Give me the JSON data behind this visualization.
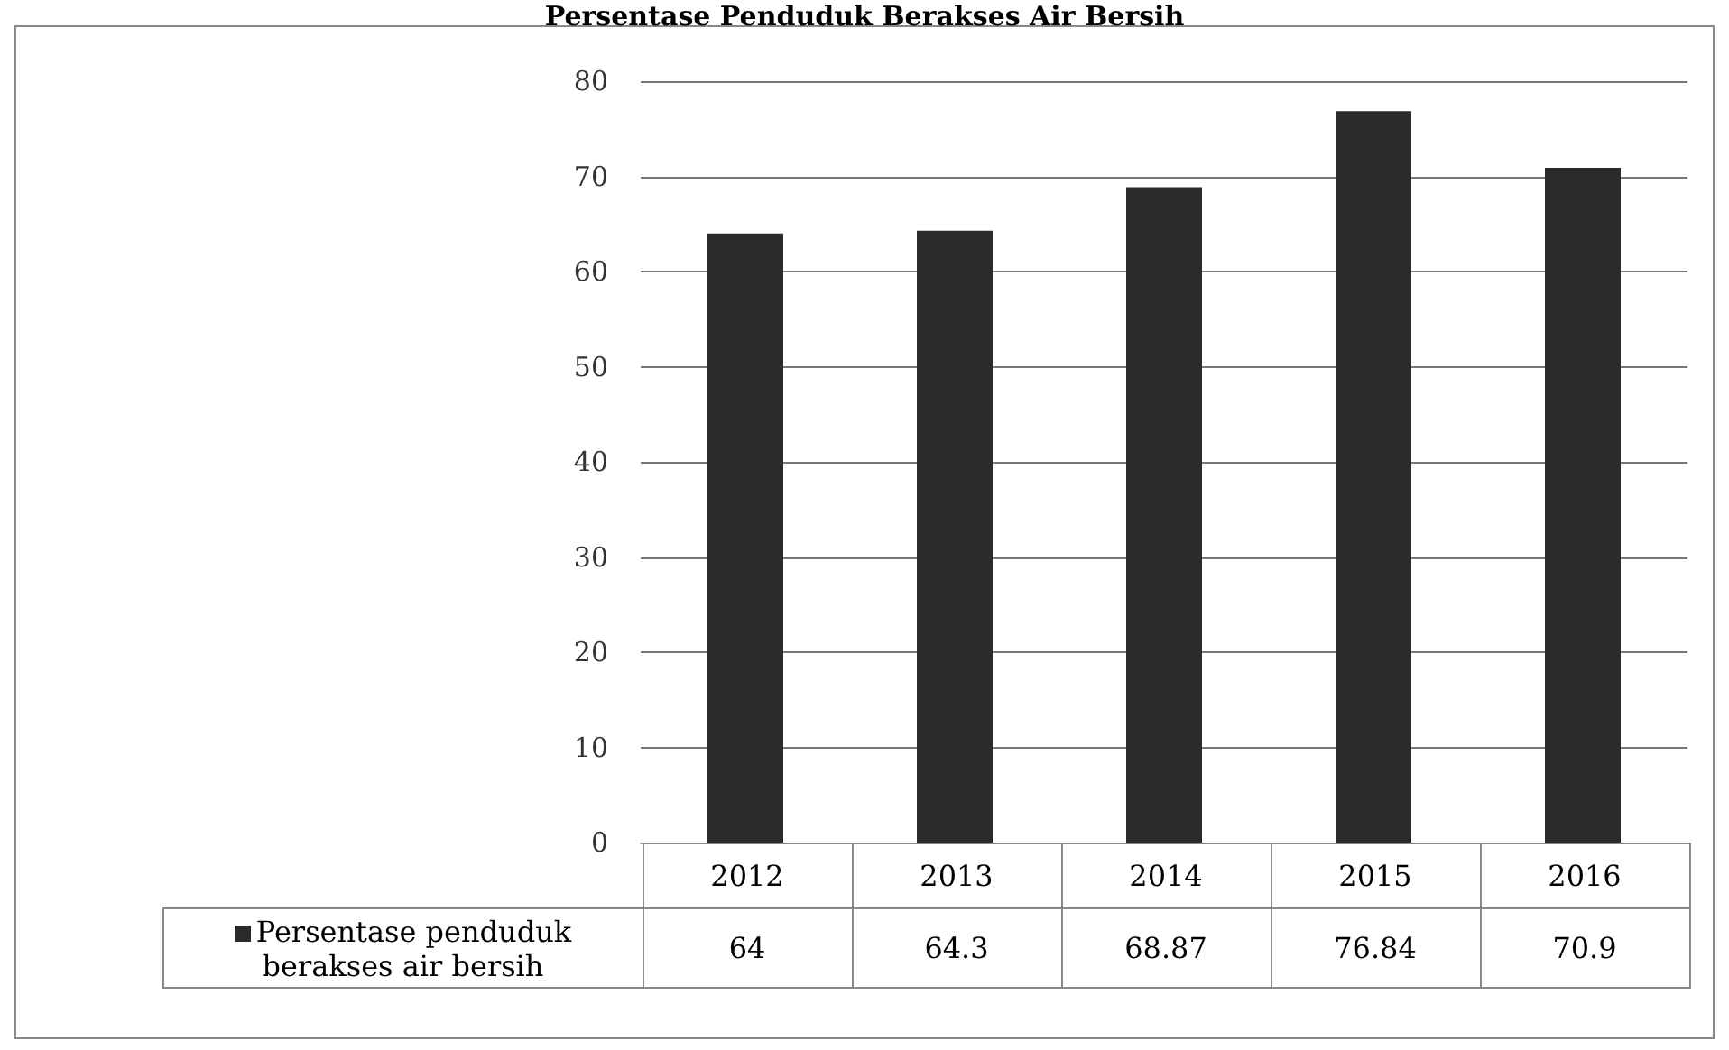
{
  "chart_data": {
    "type": "bar",
    "title": "Persentase Penduduk Berakses Air Bersih",
    "categories": [
      "2012",
      "2013",
      "2014",
      "2015",
      "2016"
    ],
    "series": [
      {
        "name": "Persentase penduduk berakses air bersih",
        "color": "#2b2b2b",
        "values": [
          64,
          64.3,
          68.87,
          76.84,
          70.9
        ]
      }
    ],
    "ylim": [
      0,
      80
    ],
    "yticks": [
      0,
      10,
      20,
      30,
      40,
      50,
      60,
      70,
      80
    ],
    "grid": "y",
    "legend": "bottom",
    "data_labels": true
  }
}
